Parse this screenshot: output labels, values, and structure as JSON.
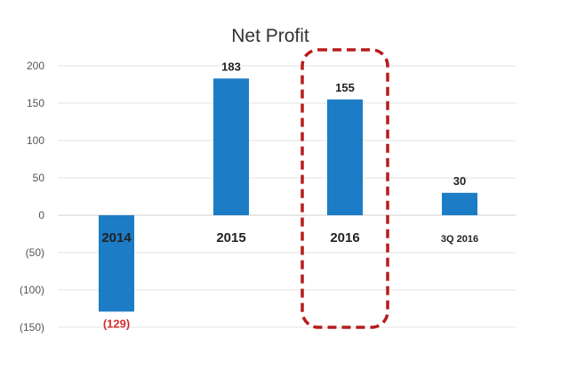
{
  "chart_data": {
    "type": "bar",
    "title": "Net Profit",
    "categories": [
      "2014",
      "2015",
      "2016",
      "3Q 2016"
    ],
    "values": [
      -129,
      183,
      155,
      30
    ],
    "value_labels": [
      "(129)",
      "183",
      "155",
      "30"
    ],
    "yticks": [
      200,
      150,
      100,
      50,
      0,
      -50,
      -100,
      -150
    ],
    "ytick_labels": [
      "200",
      "150",
      "100",
      "50",
      "0",
      "(50)",
      "(100)",
      "(150)"
    ],
    "ylim": [
      -150,
      200
    ],
    "grid": true,
    "xlabel": "",
    "ylabel": "",
    "highlighted_category": "2016",
    "colors": {
      "bar": "#1c7cc6",
      "negative_label": "#d32f2f",
      "highlight_box": "#b71c1c"
    }
  }
}
